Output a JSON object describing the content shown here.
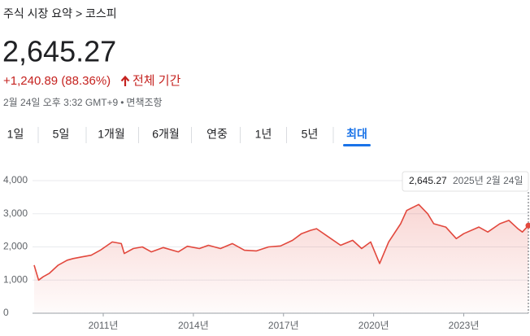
{
  "header": {
    "breadcrumb": "주식 시장 요약 > 코스피",
    "price": "2,645.27",
    "change": "+1,240.89 (88.36%)",
    "period": "전체 기간",
    "timestamp": "2월 24일 오후 3:32 GMT+9",
    "disclaimer": "면책조항"
  },
  "tabs": {
    "items": [
      "1일",
      "5일",
      "1개월",
      "6개월",
      "연중",
      "1년",
      "5년",
      "최대"
    ],
    "selected": 7
  },
  "tooltip": {
    "value": "2,645.27",
    "date": "2025년 2월 24일"
  },
  "chart_data": {
    "type": "area",
    "color": "#e2483d",
    "x": [
      2008.7,
      2008.85,
      2009.0,
      2009.2,
      2009.5,
      2009.8,
      2010.0,
      2010.3,
      2010.6,
      2010.9,
      2011.3,
      2011.6,
      2011.7,
      2012.0,
      2012.3,
      2012.6,
      2013.0,
      2013.5,
      2013.8,
      2014.2,
      2014.5,
      2014.9,
      2015.3,
      2015.7,
      2016.1,
      2016.5,
      2016.9,
      2017.3,
      2017.6,
      2017.9,
      2018.1,
      2018.5,
      2018.9,
      2019.3,
      2019.6,
      2019.9,
      2020.2,
      2020.5,
      2020.9,
      2021.1,
      2021.5,
      2021.8,
      2022.0,
      2022.4,
      2022.75,
      2023.0,
      2023.5,
      2023.8,
      2024.2,
      2024.5,
      2024.8,
      2024.95,
      2025.15
    ],
    "values": [
      1450,
      1000,
      1100,
      1200,
      1450,
      1600,
      1650,
      1700,
      1750,
      1900,
      2150,
      2100,
      1800,
      1950,
      2000,
      1850,
      1980,
      1850,
      2020,
      1950,
      2050,
      1950,
      2100,
      1900,
      1880,
      2000,
      2030,
      2200,
      2400,
      2500,
      2550,
      2300,
      2050,
      2200,
      1950,
      2150,
      1500,
      2150,
      2700,
      3100,
      3280,
      3000,
      2700,
      2600,
      2250,
      2400,
      2600,
      2450,
      2700,
      2800,
      2550,
      2450,
      2645.27
    ],
    "xlim": [
      2008.7,
      2025.15
    ],
    "xticks": [
      {
        "value": 2011,
        "label": "2011년"
      },
      {
        "value": 2014,
        "label": "2014년"
      },
      {
        "value": 2017,
        "label": "2017년"
      },
      {
        "value": 2020,
        "label": "2020년"
      },
      {
        "value": 2023,
        "label": "2023년"
      }
    ],
    "ylim": [
      0,
      4000
    ],
    "yticks": [
      0,
      {
        "value": 1000,
        "label": "1,000"
      },
      {
        "value": 2000,
        "label": "2,000"
      },
      {
        "value": 3000,
        "label": "3,000"
      },
      {
        "value": 4000,
        "label": "4,000"
      }
    ],
    "grid": true
  }
}
